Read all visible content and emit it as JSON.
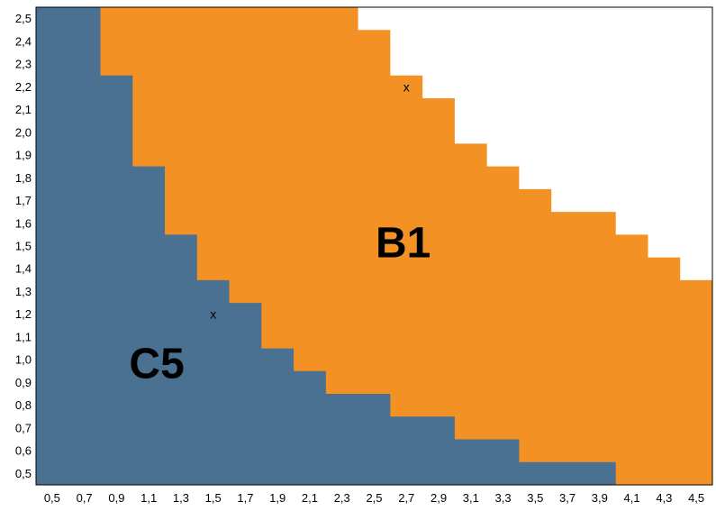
{
  "chart_data": {
    "type": "area",
    "xlim": [
      0.4,
      4.6
    ],
    "ylim": [
      0.45,
      2.55
    ],
    "x_ticks": [
      "0,5",
      "0,7",
      "0,9",
      "1,1",
      "1,3",
      "1,5",
      "1,7",
      "1,9",
      "2,1",
      "2,3",
      "2,5",
      "2,7",
      "2,9",
      "3,1",
      "3,3",
      "3,5",
      "3,7",
      "3,9",
      "4,1",
      "4,3",
      "4,5"
    ],
    "x_tick_values": [
      0.5,
      0.7,
      0.9,
      1.1,
      1.3,
      1.5,
      1.7,
      1.9,
      2.1,
      2.3,
      2.5,
      2.7,
      2.9,
      3.1,
      3.3,
      3.5,
      3.7,
      3.9,
      4.1,
      4.3,
      4.5
    ],
    "y_ticks": [
      "0,5",
      "0,6",
      "0,7",
      "0,8",
      "0,9",
      "1,0",
      "1,1",
      "1,2",
      "1,3",
      "1,4",
      "1,5",
      "1,6",
      "1,7",
      "1,8",
      "1,9",
      "2,0",
      "2,1",
      "2,2",
      "2,3",
      "2,4",
      "2,5"
    ],
    "y_tick_values": [
      0.5,
      0.6,
      0.7,
      0.8,
      0.9,
      1.0,
      1.1,
      1.2,
      1.3,
      1.4,
      1.5,
      1.6,
      1.7,
      1.8,
      1.9,
      2.0,
      2.1,
      2.2,
      2.3,
      2.4,
      2.5
    ],
    "regions": [
      {
        "name": "B1",
        "color": "#F39125",
        "boundary_x": [
          0.8,
          1.0,
          1.0,
          1.2,
          1.4,
          1.6,
          1.8,
          2.0,
          2.2,
          2.4,
          2.6,
          2.8,
          3.0,
          3.2,
          3.4,
          3.6,
          3.8,
          4.0,
          4.2,
          4.4,
          4.6
        ],
        "boundary_y": [
          2.55,
          2.55,
          2.55,
          2.55,
          2.55,
          2.55,
          2.55,
          2.55,
          2.55,
          2.45,
          2.25,
          2.15,
          1.95,
          1.85,
          1.75,
          1.65,
          1.65,
          1.55,
          1.45,
          1.35,
          1.35
        ]
      },
      {
        "name": "C5",
        "color": "#4A7191",
        "boundary_x": [
          0.8,
          1.0,
          1.0,
          1.2,
          1.4,
          1.6,
          1.8,
          2.0,
          2.2,
          2.4,
          2.6,
          2.8,
          3.0,
          3.2,
          3.4,
          3.6,
          3.8,
          4.0
        ],
        "boundary_y": [
          2.25,
          1.95,
          1.85,
          1.55,
          1.35,
          1.25,
          1.05,
          0.95,
          0.85,
          0.85,
          0.75,
          0.75,
          0.65,
          0.65,
          0.55,
          0.55,
          0.55,
          0.45
        ]
      }
    ],
    "markers": [
      {
        "label": "x",
        "x": 2.7,
        "y": 2.2
      },
      {
        "label": "x",
        "x": 1.5,
        "y": 1.2
      }
    ],
    "grid": false,
    "legend": "none"
  }
}
